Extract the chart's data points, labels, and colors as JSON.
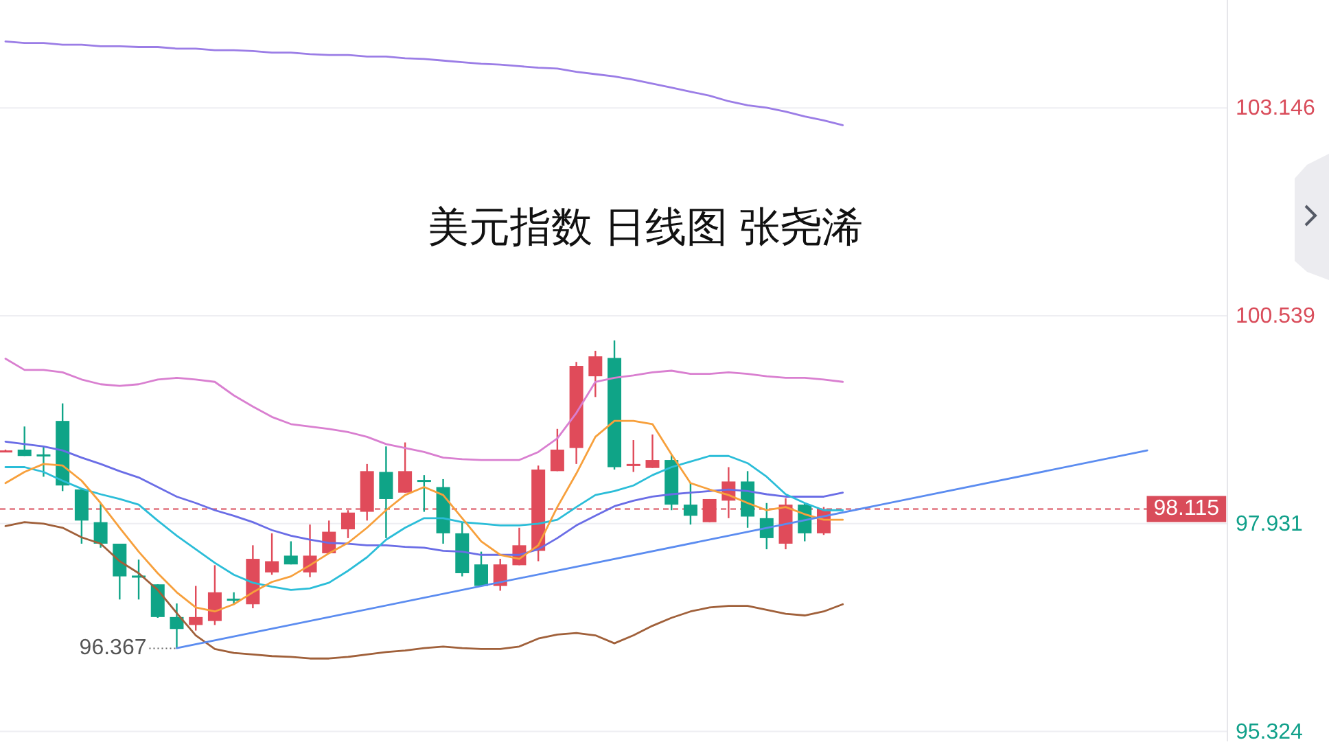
{
  "chart_data": {
    "type": "candlestick",
    "title": "美元指数 日线图 张尧浠",
    "categories": [
      null,
      null,
      null,
      null,
      null,
      null,
      null,
      null,
      null,
      null,
      null,
      null,
      null,
      null,
      null,
      null,
      null,
      null,
      null,
      null,
      null,
      null,
      null,
      null,
      null,
      null,
      null,
      null,
      null,
      null,
      null,
      null,
      null,
      null,
      null,
      null,
      null,
      null,
      null,
      null,
      null,
      null,
      null,
      null,
      null,
      null,
      null,
      null,
      null,
      null,
      null,
      null,
      null,
      null,
      null,
      null,
      null,
      null,
      null,
      null,
      null
    ],
    "ohlc": [
      [
        98.83,
        98.86,
        98.83,
        98.85
      ],
      [
        98.86,
        99.15,
        98.78,
        98.78
      ],
      [
        98.8,
        98.9,
        98.52,
        98.79
      ],
      [
        99.22,
        99.44,
        98.34,
        98.41
      ],
      [
        98.36,
        98.36,
        97.68,
        97.97
      ],
      [
        97.95,
        98.19,
        97.63,
        97.68
      ],
      [
        97.68,
        97.68,
        96.98,
        97.27
      ],
      [
        97.28,
        97.48,
        96.98,
        97.27
      ],
      [
        97.17,
        97.17,
        96.75,
        96.76
      ],
      [
        96.76,
        96.93,
        96.367,
        96.61
      ],
      [
        96.66,
        97.15,
        96.59,
        96.76
      ],
      [
        96.71,
        97.41,
        96.66,
        97.07
      ],
      [
        96.99,
        97.07,
        96.92,
        96.98
      ],
      [
        96.92,
        97.66,
        96.87,
        97.49
      ],
      [
        97.32,
        97.81,
        97.29,
        97.46
      ],
      [
        97.53,
        97.71,
        97.42,
        97.42
      ],
      [
        97.32,
        97.92,
        97.26,
        97.53
      ],
      [
        97.56,
        97.97,
        97.56,
        97.83
      ],
      [
        97.86,
        98.1,
        97.75,
        98.07
      ],
      [
        98.08,
        98.68,
        97.97,
        98.59
      ],
      [
        98.58,
        98.9,
        97.75,
        98.24
      ],
      [
        98.32,
        98.95,
        98.32,
        98.59
      ],
      [
        98.48,
        98.54,
        98.08,
        98.47
      ],
      [
        98.39,
        98.49,
        97.68,
        97.81
      ],
      [
        97.81,
        97.95,
        97.27,
        97.31
      ],
      [
        97.42,
        97.58,
        97.15,
        97.15
      ],
      [
        97.15,
        97.49,
        97.09,
        97.42
      ],
      [
        97.41,
        97.88,
        97.41,
        97.66
      ],
      [
        97.59,
        98.66,
        97.46,
        98.61
      ],
      [
        98.59,
        99.12,
        98.59,
        98.86
      ],
      [
        98.88,
        99.96,
        98.68,
        99.91
      ],
      [
        99.78,
        100.1,
        99.52,
        100.03
      ],
      [
        100.01,
        100.23,
        98.61,
        98.64
      ],
      [
        98.66,
        98.98,
        98.58,
        98.68
      ],
      [
        98.63,
        99.05,
        98.63,
        98.73
      ],
      [
        98.73,
        98.8,
        98.1,
        98.17
      ],
      [
        98.17,
        98.44,
        97.92,
        98.03
      ],
      [
        97.95,
        98.24,
        97.95,
        98.24
      ],
      [
        98.22,
        98.64,
        98.0,
        98.46
      ],
      [
        98.46,
        98.59,
        97.88,
        98.02
      ],
      [
        98.0,
        98.19,
        97.61,
        97.75
      ],
      [
        97.68,
        98.25,
        97.61,
        98.17
      ],
      [
        98.17,
        98.19,
        97.71,
        97.81
      ],
      [
        97.81,
        98.14,
        97.79,
        98.115
      ],
      null,
      null,
      null,
      null,
      null,
      null,
      null,
      null,
      null,
      null,
      null,
      null,
      null,
      null,
      null,
      null,
      null
    ],
    "series": [
      {
        "type": "line",
        "color": "#9b7de6",
        "values": [
          103.98,
          103.96,
          103.96,
          103.94,
          103.94,
          103.92,
          103.92,
          103.91,
          103.91,
          103.89,
          103.89,
          103.87,
          103.87,
          103.86,
          103.84,
          103.84,
          103.82,
          103.81,
          103.81,
          103.79,
          103.79,
          103.77,
          103.76,
          103.74,
          103.72,
          103.7,
          103.69,
          103.67,
          103.65,
          103.64,
          103.6,
          103.57,
          103.54,
          103.5,
          103.45,
          103.4,
          103.35,
          103.3,
          103.23,
          103.18,
          103.15,
          103.1,
          103.04,
          102.99,
          102.93,
          null,
          null,
          null,
          null,
          null,
          null,
          null,
          null,
          null,
          null,
          null,
          null,
          null,
          null,
          null,
          null
        ]
      },
      {
        "type": "line",
        "color": "#d97fd0",
        "values": [
          100.0,
          99.86,
          99.86,
          99.83,
          99.74,
          99.68,
          99.66,
          99.68,
          99.74,
          99.76,
          99.74,
          99.71,
          99.54,
          99.4,
          99.27,
          99.18,
          99.15,
          99.12,
          99.08,
          99.02,
          98.93,
          98.88,
          98.83,
          98.76,
          98.74,
          98.73,
          98.73,
          98.73,
          98.83,
          99.0,
          99.32,
          99.71,
          99.76,
          99.79,
          99.83,
          99.85,
          99.81,
          99.81,
          99.83,
          99.81,
          99.78,
          99.76,
          99.76,
          99.74,
          99.71,
          null,
          null,
          null,
          null,
          null,
          null,
          null,
          null,
          null,
          null,
          null,
          null,
          null,
          null,
          null,
          null
        ]
      },
      {
        "type": "line",
        "color": "#a0603a",
        "values": [
          97.9,
          97.95,
          97.93,
          97.88,
          97.76,
          97.68,
          97.46,
          97.31,
          97.1,
          96.81,
          96.53,
          96.36,
          96.31,
          96.29,
          96.27,
          96.26,
          96.24,
          96.24,
          96.26,
          96.29,
          96.32,
          96.34,
          96.37,
          96.39,
          96.37,
          96.36,
          96.36,
          96.39,
          96.49,
          96.54,
          96.56,
          96.53,
          96.43,
          96.53,
          96.65,
          96.75,
          96.83,
          96.88,
          96.9,
          96.9,
          96.85,
          96.8,
          96.78,
          96.83,
          96.92,
          null,
          null,
          null,
          null,
          null,
          null,
          null,
          null,
          null,
          null,
          null,
          null,
          null,
          null,
          null,
          null
        ]
      },
      {
        "type": "line",
        "color": "#6a6de6",
        "values": [
          98.96,
          98.93,
          98.9,
          98.85,
          98.76,
          98.68,
          98.59,
          98.51,
          98.39,
          98.27,
          98.19,
          98.1,
          98.03,
          97.95,
          97.85,
          97.78,
          97.73,
          97.69,
          97.68,
          97.66,
          97.66,
          97.64,
          97.63,
          97.59,
          97.58,
          97.54,
          97.54,
          97.54,
          97.61,
          97.75,
          97.91,
          98.03,
          98.15,
          98.22,
          98.27,
          98.3,
          98.32,
          98.34,
          98.36,
          98.34,
          98.3,
          98.27,
          98.27,
          98.27,
          98.32,
          null,
          null,
          null,
          null,
          null,
          null,
          null,
          null,
          null,
          null,
          null,
          null,
          null,
          null,
          null,
          null
        ]
      },
      {
        "type": "line",
        "color": "#2bbdd8",
        "values": [
          98.64,
          98.64,
          98.58,
          98.47,
          98.37,
          98.3,
          98.24,
          98.17,
          97.97,
          97.78,
          97.61,
          97.44,
          97.29,
          97.19,
          97.14,
          97.1,
          97.12,
          97.19,
          97.34,
          97.51,
          97.73,
          97.88,
          98.0,
          98.0,
          97.95,
          97.93,
          97.91,
          97.91,
          97.93,
          97.98,
          98.14,
          98.29,
          98.34,
          98.41,
          98.54,
          98.64,
          98.71,
          98.78,
          98.78,
          98.69,
          98.52,
          98.3,
          98.19,
          98.1,
          98.1,
          null,
          null,
          null,
          null,
          null,
          null,
          null,
          null,
          null,
          null,
          null,
          null,
          null,
          null,
          null,
          null
        ]
      },
      {
        "type": "line",
        "color": "#f7a03c",
        "values": [
          98.44,
          98.58,
          98.68,
          98.66,
          98.47,
          98.19,
          97.88,
          97.58,
          97.31,
          97.07,
          96.88,
          96.83,
          96.92,
          97.07,
          97.2,
          97.27,
          97.41,
          97.56,
          97.69,
          97.88,
          98.1,
          98.29,
          98.39,
          98.29,
          98.0,
          97.71,
          97.54,
          97.49,
          97.66,
          98.14,
          98.56,
          99.02,
          99.22,
          99.22,
          99.18,
          98.8,
          98.44,
          98.36,
          98.29,
          98.19,
          98.1,
          98.14,
          98.05,
          97.98,
          97.98,
          null,
          null,
          null,
          null,
          null,
          null,
          null,
          null,
          null,
          null,
          null,
          null,
          null,
          null,
          null,
          null
        ]
      },
      {
        "type": "line",
        "color": "#5b8cf0",
        "values": [
          null,
          null,
          null,
          null,
          null,
          null,
          null,
          null,
          null,
          96.37,
          null,
          null,
          null,
          null,
          null,
          null,
          null,
          null,
          null,
          null,
          null,
          null,
          null,
          null,
          null,
          null,
          null,
          null,
          null,
          null,
          null,
          null,
          null,
          null,
          null,
          null,
          null,
          null,
          null,
          null,
          null,
          null,
          null,
          null,
          null,
          null,
          null,
          null,
          null,
          null,
          null,
          null,
          null,
          null,
          null,
          null,
          null,
          null,
          null,
          null,
          98.85
        ]
      }
    ],
    "ylim": [
      95.2,
      104.5
    ],
    "yticks": [
      103.146,
      100.539,
      97.931,
      95.324
    ],
    "grid": "y",
    "ref_lines": [
      {
        "axis": "y",
        "value": 98.115,
        "label": "98.115",
        "color": "#d94c5a",
        "line_style": "dashed"
      }
    ],
    "annotations": [
      "96.367"
    ]
  }
}
